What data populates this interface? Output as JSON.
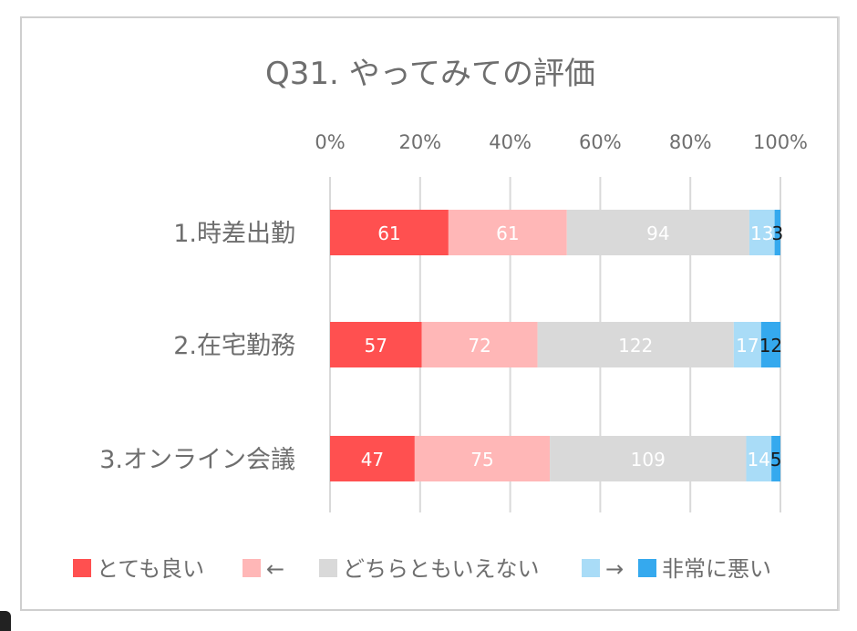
{
  "chart_data": {
    "type": "bar",
    "orientation": "horizontal",
    "stacked": "percent",
    "title": "Q31. やってみての評価",
    "categories": [
      "1.時差出勤",
      "2.在宅勤務",
      "3.オンライン会議"
    ],
    "series": [
      {
        "name": "とても良い",
        "color": "#ff5050",
        "label_color": "#ffffff",
        "values": [
          61,
          57,
          47
        ]
      },
      {
        "name": "←",
        "color": "#ffb7b7",
        "label_color": "#ffffff",
        "values": [
          61,
          72,
          75
        ]
      },
      {
        "name": "どちらともいえない",
        "color": "#d9d9d9",
        "label_color": "#ffffff",
        "values": [
          94,
          122,
          109
        ]
      },
      {
        "name": "→",
        "color": "#a9dcf7",
        "label_color": "#ffffff",
        "values": [
          13,
          17,
          14
        ]
      },
      {
        "name": "非常に悪い",
        "color": "#35a9ee",
        "label_color": "#1a1a1a",
        "values": [
          3,
          12,
          5
        ]
      }
    ],
    "x_ticks": [
      "0%",
      "20%",
      "40%",
      "60%",
      "80%",
      "100%"
    ],
    "xlim": [
      0,
      100
    ],
    "grid": true,
    "legend_position": "bottom"
  }
}
